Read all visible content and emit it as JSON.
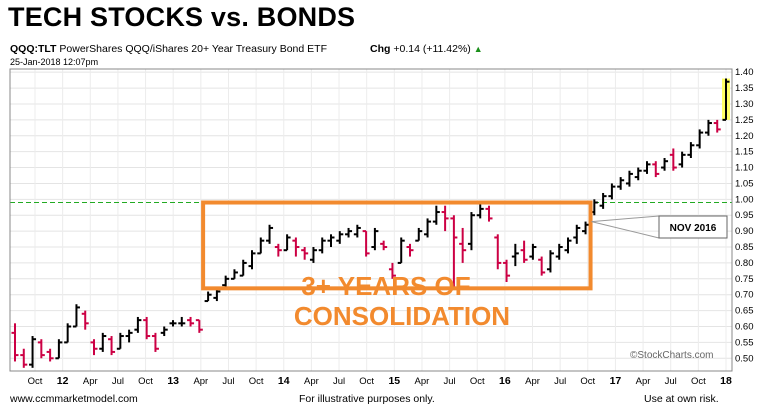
{
  "title": "TECH STOCKS vs. BONDS",
  "header": {
    "symbol": "QQQ:TLT",
    "description": "PowerShares QQQ/iShares 20+ Year Treasury Bond ETF",
    "chg_label": "Chg",
    "chg_value": "+0.14 (+11.42%)",
    "chg_arrow": "▲",
    "date": "25-Jan-2018 12:07pm"
  },
  "annotations": {
    "consolidation_line1": "3+ YEARS OF",
    "consolidation_line2": "CONSOLIDATION",
    "nov_label": "NOV 2016",
    "watermark": "©StockCharts.com"
  },
  "footer": {
    "left": "www.ccmmarketmodel.com",
    "center": "For illustrative purposes only.",
    "right": "Use at own risk."
  },
  "colors": {
    "up": "#000000",
    "down": "#cc0044",
    "box": "#f28a2e",
    "annotation_text": "#f28a2e",
    "reference_line": "#22aa22",
    "highlight": "#ffff66"
  },
  "chart_data": {
    "type": "ohlc",
    "ylim": [
      0.46,
      1.41
    ],
    "y_ticks": [
      0.5,
      0.55,
      0.6,
      0.65,
      0.7,
      0.75,
      0.8,
      0.85,
      0.9,
      0.95,
      1.0,
      1.05,
      1.1,
      1.15,
      1.2,
      1.25,
      1.3,
      1.35,
      1.4
    ],
    "x_labels": [
      "Oct",
      "12",
      "Apr",
      "Jul",
      "Oct",
      "13",
      "Apr",
      "Jul",
      "Oct",
      "14",
      "Apr",
      "Jul",
      "Oct",
      "15",
      "Apr",
      "Jul",
      "Oct",
      "16",
      "Apr",
      "Jul",
      "Oct",
      "17",
      "Apr",
      "Jul",
      "Oct",
      "18"
    ],
    "reference_line": 0.99,
    "consolidation_range": [
      0.72,
      0.99
    ],
    "bars": [
      {
        "o": 0.58,
        "h": 0.61,
        "l": 0.49,
        "c": 0.51
      },
      {
        "o": 0.51,
        "h": 0.53,
        "l": 0.47,
        "c": 0.48
      },
      {
        "o": 0.48,
        "h": 0.57,
        "l": 0.47,
        "c": 0.56
      },
      {
        "o": 0.55,
        "h": 0.56,
        "l": 0.5,
        "c": 0.51
      },
      {
        "o": 0.52,
        "h": 0.53,
        "l": 0.49,
        "c": 0.5
      },
      {
        "o": 0.5,
        "h": 0.56,
        "l": 0.5,
        "c": 0.55
      },
      {
        "o": 0.55,
        "h": 0.61,
        "l": 0.55,
        "c": 0.6
      },
      {
        "o": 0.6,
        "h": 0.67,
        "l": 0.6,
        "c": 0.66
      },
      {
        "o": 0.64,
        "h": 0.65,
        "l": 0.59,
        "c": 0.61
      },
      {
        "o": 0.55,
        "h": 0.56,
        "l": 0.51,
        "c": 0.53
      },
      {
        "o": 0.53,
        "h": 0.58,
        "l": 0.52,
        "c": 0.57
      },
      {
        "o": 0.56,
        "h": 0.57,
        "l": 0.51,
        "c": 0.52
      },
      {
        "o": 0.53,
        "h": 0.58,
        "l": 0.53,
        "c": 0.57
      },
      {
        "o": 0.57,
        "h": 0.59,
        "l": 0.55,
        "c": 0.58
      },
      {
        "o": 0.59,
        "h": 0.63,
        "l": 0.58,
        "c": 0.62
      },
      {
        "o": 0.62,
        "h": 0.63,
        "l": 0.56,
        "c": 0.57
      },
      {
        "o": 0.57,
        "h": 0.58,
        "l": 0.52,
        "c": 0.53
      },
      {
        "o": 0.58,
        "h": 0.6,
        "l": 0.57,
        "c": 0.59
      },
      {
        "o": 0.61,
        "h": 0.62,
        "l": 0.6,
        "c": 0.61
      },
      {
        "o": 0.61,
        "h": 0.63,
        "l": 0.6,
        "c": 0.61
      },
      {
        "o": 0.62,
        "h": 0.63,
        "l": 0.6,
        "c": 0.61
      },
      {
        "o": 0.62,
        "h": 0.62,
        "l": 0.58,
        "c": 0.59
      },
      {
        "o": 0.68,
        "h": 0.71,
        "l": 0.68,
        "c": 0.7
      },
      {
        "o": 0.69,
        "h": 0.72,
        "l": 0.68,
        "c": 0.71
      },
      {
        "o": 0.73,
        "h": 0.76,
        "l": 0.72,
        "c": 0.75
      },
      {
        "o": 0.75,
        "h": 0.78,
        "l": 0.75,
        "c": 0.77
      },
      {
        "o": 0.76,
        "h": 0.81,
        "l": 0.76,
        "c": 0.8
      },
      {
        "o": 0.79,
        "h": 0.84,
        "l": 0.78,
        "c": 0.83
      },
      {
        "o": 0.83,
        "h": 0.88,
        "l": 0.83,
        "c": 0.87
      },
      {
        "o": 0.87,
        "h": 0.92,
        "l": 0.86,
        "c": 0.91
      },
      {
        "o": 0.85,
        "h": 0.86,
        "l": 0.82,
        "c": 0.84
      },
      {
        "o": 0.84,
        "h": 0.89,
        "l": 0.84,
        "c": 0.88
      },
      {
        "o": 0.87,
        "h": 0.88,
        "l": 0.82,
        "c": 0.85
      },
      {
        "o": 0.84,
        "h": 0.85,
        "l": 0.81,
        "c": 0.83
      },
      {
        "o": 0.81,
        "h": 0.85,
        "l": 0.8,
        "c": 0.84
      },
      {
        "o": 0.84,
        "h": 0.88,
        "l": 0.83,
        "c": 0.87
      },
      {
        "o": 0.87,
        "h": 0.89,
        "l": 0.85,
        "c": 0.88
      },
      {
        "o": 0.87,
        "h": 0.9,
        "l": 0.86,
        "c": 0.89
      },
      {
        "o": 0.89,
        "h": 0.91,
        "l": 0.88,
        "c": 0.9
      },
      {
        "o": 0.89,
        "h": 0.92,
        "l": 0.88,
        "c": 0.91
      },
      {
        "o": 0.9,
        "h": 0.9,
        "l": 0.82,
        "c": 0.83
      },
      {
        "o": 0.85,
        "h": 0.91,
        "l": 0.84,
        "c": 0.9
      },
      {
        "o": 0.86,
        "h": 0.87,
        "l": 0.84,
        "c": 0.85
      },
      {
        "o": 0.78,
        "h": 0.8,
        "l": 0.75,
        "c": 0.76
      },
      {
        "o": 0.8,
        "h": 0.88,
        "l": 0.8,
        "c": 0.87
      },
      {
        "o": 0.85,
        "h": 0.86,
        "l": 0.82,
        "c": 0.84
      },
      {
        "o": 0.87,
        "h": 0.91,
        "l": 0.87,
        "c": 0.9
      },
      {
        "o": 0.89,
        "h": 0.94,
        "l": 0.88,
        "c": 0.93
      },
      {
        "o": 0.93,
        "h": 0.98,
        "l": 0.92,
        "c": 0.96
      },
      {
        "o": 0.96,
        "h": 0.98,
        "l": 0.9,
        "c": 0.94
      },
      {
        "o": 0.94,
        "h": 0.95,
        "l": 0.72,
        "c": 0.88
      },
      {
        "o": 0.86,
        "h": 0.91,
        "l": 0.8,
        "c": 0.84
      },
      {
        "o": 0.86,
        "h": 0.96,
        "l": 0.84,
        "c": 0.95
      },
      {
        "o": 0.95,
        "h": 0.99,
        "l": 0.94,
        "c": 0.97
      },
      {
        "o": 0.97,
        "h": 0.98,
        "l": 0.93,
        "c": 0.94
      },
      {
        "o": 0.88,
        "h": 0.89,
        "l": 0.78,
        "c": 0.8
      },
      {
        "o": 0.8,
        "h": 0.81,
        "l": 0.74,
        "c": 0.76
      },
      {
        "o": 0.82,
        "h": 0.86,
        "l": 0.79,
        "c": 0.83
      },
      {
        "o": 0.84,
        "h": 0.87,
        "l": 0.8,
        "c": 0.81
      },
      {
        "o": 0.82,
        "h": 0.86,
        "l": 0.81,
        "c": 0.85
      },
      {
        "o": 0.81,
        "h": 0.82,
        "l": 0.76,
        "c": 0.77
      },
      {
        "o": 0.78,
        "h": 0.84,
        "l": 0.77,
        "c": 0.83
      },
      {
        "o": 0.82,
        "h": 0.86,
        "l": 0.81,
        "c": 0.85
      },
      {
        "o": 0.84,
        "h": 0.88,
        "l": 0.83,
        "c": 0.87
      },
      {
        "o": 0.88,
        "h": 0.92,
        "l": 0.86,
        "c": 0.91
      },
      {
        "o": 0.9,
        "h": 0.93,
        "l": 0.89,
        "c": 0.92
      },
      {
        "o": 0.96,
        "h": 1.0,
        "l": 0.95,
        "c": 0.99
      },
      {
        "o": 0.98,
        "h": 1.02,
        "l": 0.97,
        "c": 1.01
      },
      {
        "o": 1.01,
        "h": 1.05,
        "l": 1.0,
        "c": 1.04
      },
      {
        "o": 1.04,
        "h": 1.07,
        "l": 1.03,
        "c": 1.06
      },
      {
        "o": 1.05,
        "h": 1.09,
        "l": 1.04,
        "c": 1.08
      },
      {
        "o": 1.07,
        "h": 1.1,
        "l": 1.06,
        "c": 1.09
      },
      {
        "o": 1.09,
        "h": 1.12,
        "l": 1.08,
        "c": 1.11
      },
      {
        "o": 1.11,
        "h": 1.12,
        "l": 1.07,
        "c": 1.08
      },
      {
        "o": 1.1,
        "h": 1.13,
        "l": 1.09,
        "c": 1.12
      },
      {
        "o": 1.14,
        "h": 1.16,
        "l": 1.09,
        "c": 1.1
      },
      {
        "o": 1.11,
        "h": 1.15,
        "l": 1.1,
        "c": 1.14
      },
      {
        "o": 1.14,
        "h": 1.18,
        "l": 1.13,
        "c": 1.17
      },
      {
        "o": 1.17,
        "h": 1.22,
        "l": 1.16,
        "c": 1.21
      },
      {
        "o": 1.21,
        "h": 1.25,
        "l": 1.2,
        "c": 1.24
      },
      {
        "o": 1.24,
        "h": 1.25,
        "l": 1.21,
        "c": 1.22
      },
      {
        "o": 1.25,
        "h": 1.38,
        "l": 1.25,
        "c": 1.37
      }
    ]
  }
}
